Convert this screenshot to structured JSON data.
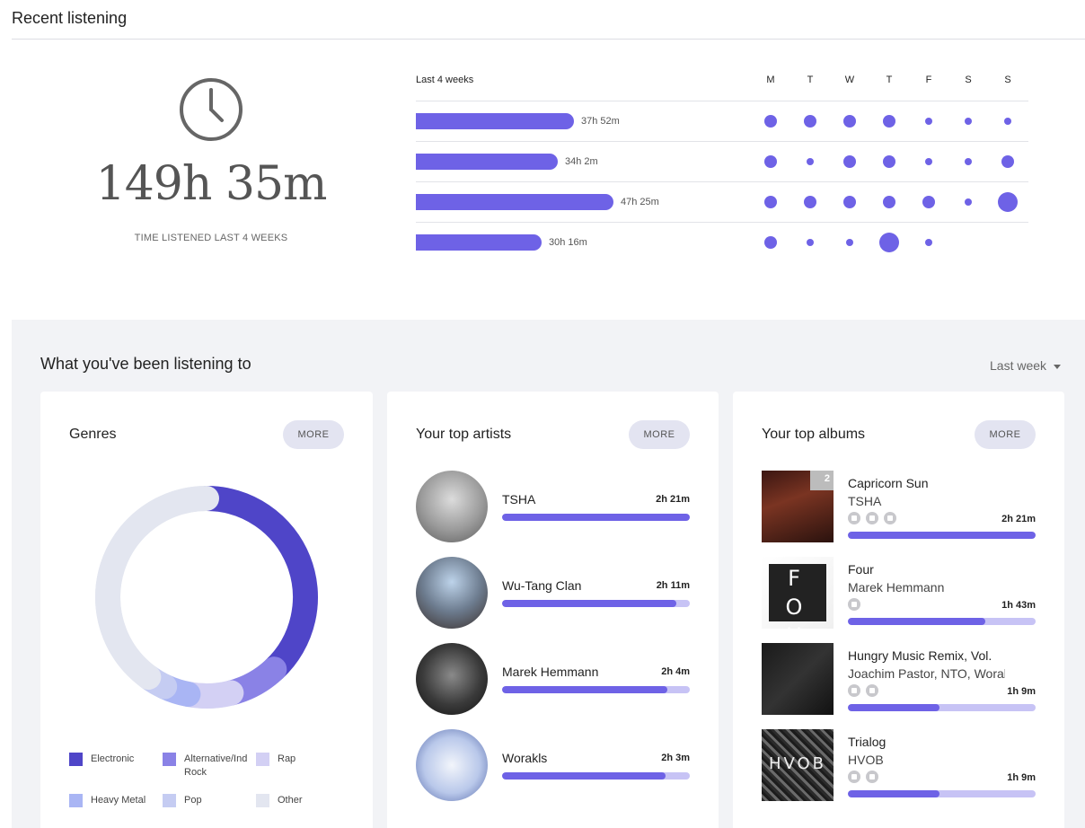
{
  "recent": {
    "title": "Recent listening",
    "total_time": "149h 35m",
    "total_caption": "TIME LISTENED LAST 4 WEEKS",
    "weeks_label": "Last 4 weeks",
    "day_letters": [
      "M",
      "T",
      "W",
      "T",
      "F",
      "S",
      "S"
    ],
    "weeks": [
      {
        "value": "37h 52m",
        "hours": 37.87,
        "day_levels": [
          3,
          3,
          3,
          3,
          1,
          1,
          1
        ]
      },
      {
        "value": "34h 2m",
        "hours": 34.03,
        "day_levels": [
          3,
          1,
          3,
          3,
          1,
          1,
          3
        ]
      },
      {
        "value": "47h 25m",
        "hours": 47.42,
        "day_levels": [
          3,
          3,
          3,
          3,
          3,
          1,
          5
        ]
      },
      {
        "value": "30h 16m",
        "hours": 30.27,
        "day_levels": [
          3,
          1,
          1,
          5,
          1,
          null,
          null
        ]
      }
    ],
    "accent_color": "#6e62e6"
  },
  "listening": {
    "title": "What you've been listening to",
    "period": "Last week"
  },
  "genres": {
    "title": "Genres",
    "more_label": "MORE",
    "items": [
      {
        "label": "Electronic",
        "color": "#4f45c8",
        "share": 0.38
      },
      {
        "label": "Alternative/Indie Rock",
        "color": "#8a82e6",
        "share": 0.08
      },
      {
        "label": "Rap",
        "color": "#d3d0f4",
        "share": 0.07
      },
      {
        "label": "Heavy Metal",
        "color": "#a9b5f4",
        "share": 0.04
      },
      {
        "label": "Pop",
        "color": "#c5ccf2",
        "share": 0.03
      },
      {
        "label": "Other",
        "color": "#e3e6f0",
        "share": 0.4
      }
    ]
  },
  "artists": {
    "title": "Your top artists",
    "more_label": "MORE",
    "items": [
      {
        "name": "TSHA",
        "time": "2h 21m",
        "progress": 1.0,
        "avatar_icon": "person-portrait-icon"
      },
      {
        "name": "Wu-Tang Clan",
        "time": "2h 11m",
        "progress": 0.93,
        "avatar_icon": "group-portrait-icon"
      },
      {
        "name": "Marek Hemmann",
        "time": "2h 4m",
        "progress": 0.88,
        "avatar_icon": "person-portrait-icon"
      },
      {
        "name": "Worakls",
        "time": "2h 3m",
        "progress": 0.87,
        "avatar_icon": "person-portrait-icon"
      }
    ]
  },
  "albums": {
    "title": "Your top albums",
    "more_label": "MORE",
    "items": [
      {
        "title": "Capricorn Sun",
        "artist": "TSHA",
        "time": "2h 21m",
        "progress": 1.0,
        "badge": "2",
        "services": [
          "heart-service-icon",
          "library-service-icon",
          "radio-service-icon"
        ],
        "cover_text": ""
      },
      {
        "title": "Four",
        "artist": "Marek Hemmann",
        "time": "1h 43m",
        "progress": 0.73,
        "badge": "",
        "services": [
          "radio-service-icon"
        ],
        "cover_text": "F O U R"
      },
      {
        "title": "Hungry Music Remix, Vol.",
        "artist": "Joachim Pastor, NTO, Worakls",
        "time": "1h 9m",
        "progress": 0.49,
        "badge": "",
        "services": [
          "library-service-icon",
          "radio-service-icon"
        ],
        "cover_text": ""
      },
      {
        "title": "Trialog",
        "artist": "HVOB",
        "time": "1h 9m",
        "progress": 0.49,
        "badge": "",
        "services": [
          "library-service-icon",
          "radio-service-icon"
        ],
        "cover_text": "HVOB"
      }
    ]
  }
}
